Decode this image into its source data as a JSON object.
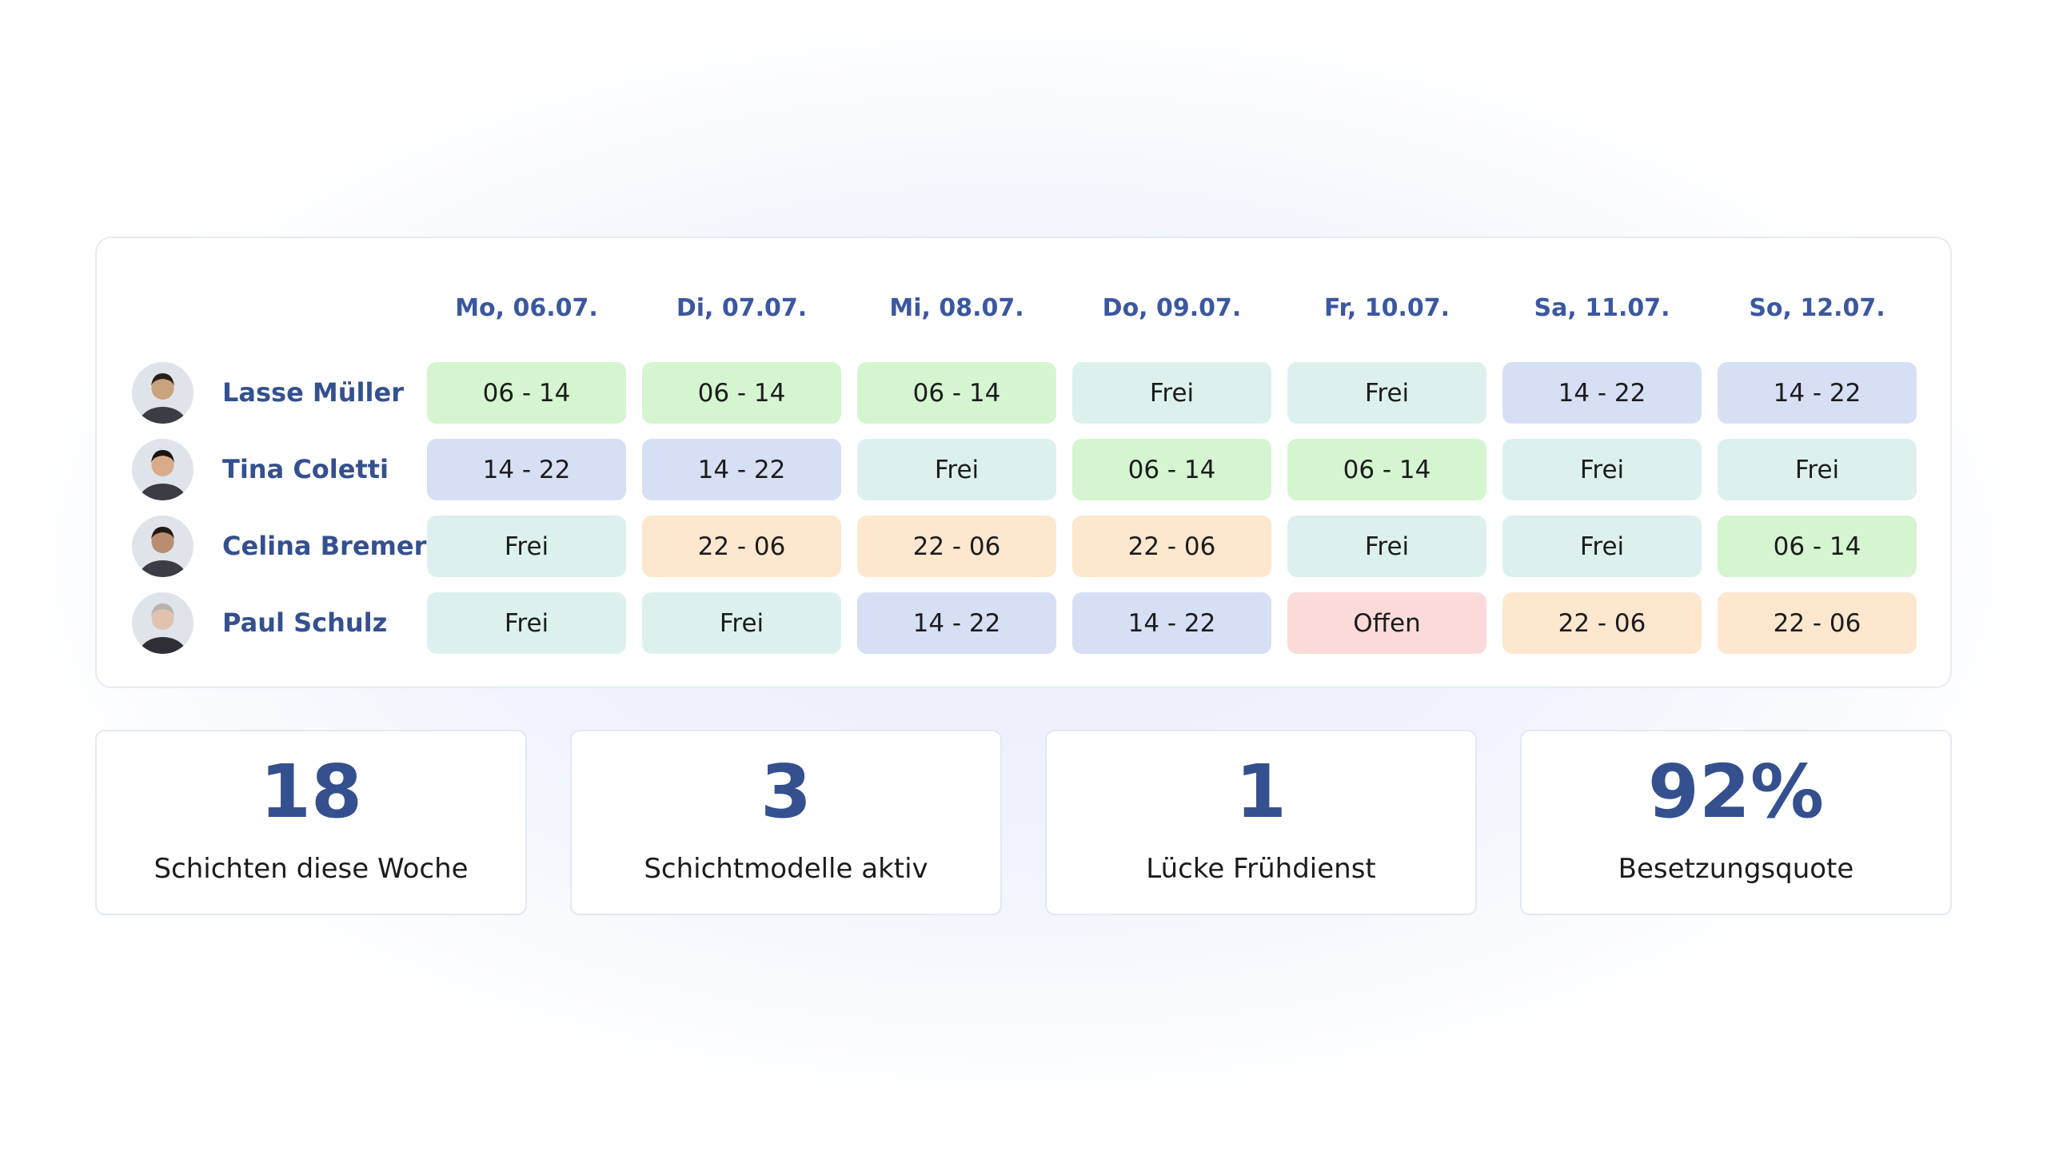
{
  "schedule": {
    "days": [
      "Mo, 06.07.",
      "Di, 07.07.",
      "Mi, 08.07.",
      "Do, 09.07.",
      "Fr, 10.07.",
      "Sa, 11.07.",
      "So, 12.07."
    ],
    "employees": [
      {
        "name": "Lasse Müller",
        "shifts": [
          {
            "text": "06 - 14",
            "color": "#d4f5d0"
          },
          {
            "text": "06 - 14",
            "color": "#d4f5d0"
          },
          {
            "text": "06 - 14",
            "color": "#d4f5d0"
          },
          {
            "text": "Frei",
            "color": "#dcf1ee"
          },
          {
            "text": "Frei",
            "color": "#dcf1ee"
          },
          {
            "text": "14 - 22",
            "color": "#d7dff5"
          },
          {
            "text": "14 - 22",
            "color": "#d7dff5"
          }
        ]
      },
      {
        "name": "Tina Coletti",
        "shifts": [
          {
            "text": "14 - 22",
            "color": "#d7dff5"
          },
          {
            "text": "14 - 22",
            "color": "#d7dff5"
          },
          {
            "text": "Frei",
            "color": "#dcf1ee"
          },
          {
            "text": "06 - 14",
            "color": "#d4f5d0"
          },
          {
            "text": "06 - 14",
            "color": "#d4f5d0"
          },
          {
            "text": "Frei",
            "color": "#dcf1ee"
          },
          {
            "text": "Frei",
            "color": "#dcf1ee"
          }
        ]
      },
      {
        "name": "Celina Bremer",
        "shifts": [
          {
            "text": "Frei",
            "color": "#dcf1ee"
          },
          {
            "text": "22 - 06",
            "color": "#fde7cf"
          },
          {
            "text": "22 - 06",
            "color": "#fde7cf"
          },
          {
            "text": "22 - 06",
            "color": "#fde7cf"
          },
          {
            "text": "Frei",
            "color": "#dcf1ee"
          },
          {
            "text": "Frei",
            "color": "#dcf1ee"
          },
          {
            "text": "06 - 14",
            "color": "#d4f5d0"
          }
        ]
      },
      {
        "name": "Paul Schulz",
        "shifts": [
          {
            "text": "Frei",
            "color": "#dcf1ee"
          },
          {
            "text": "Frei",
            "color": "#dcf1ee"
          },
          {
            "text": "14 - 22",
            "color": "#d7dff5"
          },
          {
            "text": "14 - 22",
            "color": "#d7dff5"
          },
          {
            "text": "Offen",
            "color": "#fbdada"
          },
          {
            "text": "22 - 06",
            "color": "#fde7cf"
          },
          {
            "text": "22 - 06",
            "color": "#fde7cf"
          }
        ]
      }
    ]
  },
  "stats": [
    {
      "value": "18",
      "label": "Schichten diese Woche"
    },
    {
      "value": "3",
      "label": "Schichtmodelle aktiv"
    },
    {
      "value": "1",
      "label": "Lücke Frühdienst"
    },
    {
      "value": "92%",
      "label": "Besetzungsquote"
    }
  ]
}
